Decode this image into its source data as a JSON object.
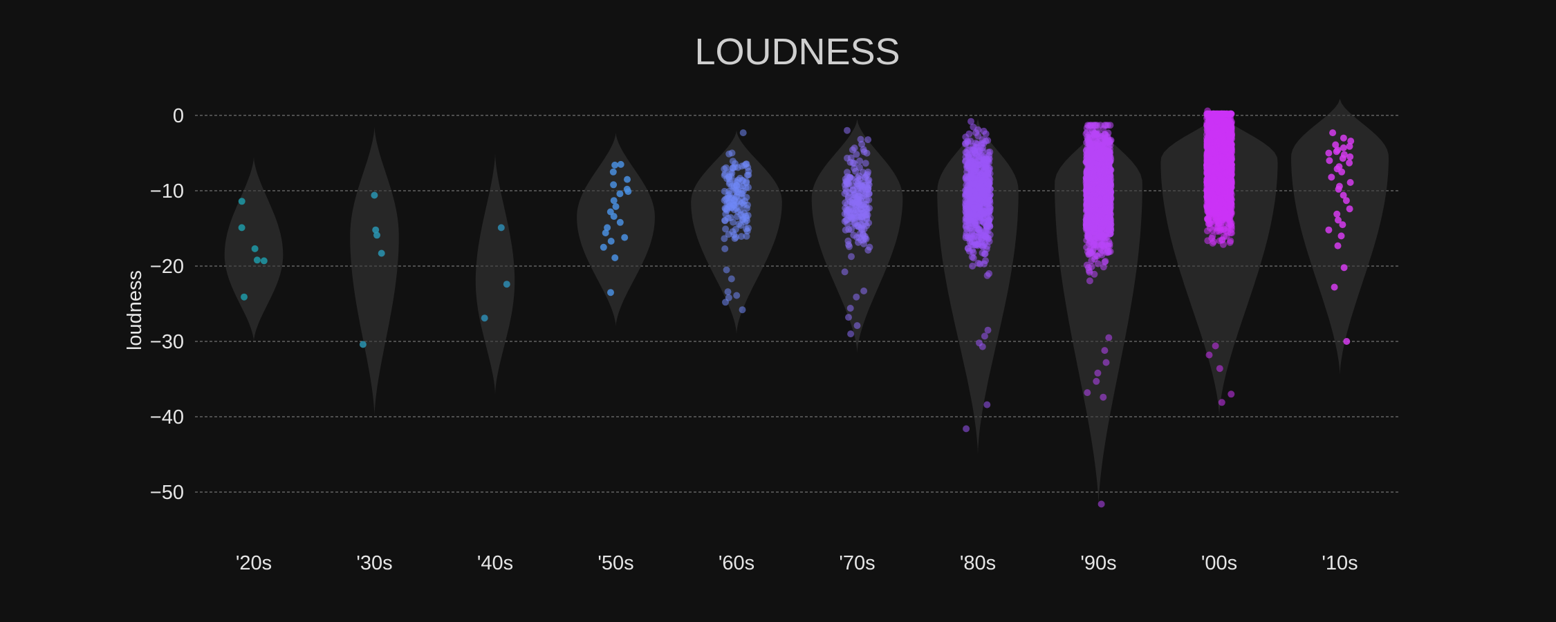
{
  "chart_data": {
    "type": "violin-strip",
    "title": "LOUDNESS",
    "xlabel": "",
    "ylabel": "loudness",
    "ylim": [
      -55,
      3
    ],
    "yticks": [
      0,
      -10,
      -20,
      -30,
      -40,
      -50
    ],
    "ytick_labels": [
      "0",
      "−10",
      "−20",
      "−30",
      "−40",
      "−50"
    ],
    "grid": true,
    "categories": [
      "'20s",
      "'30s",
      "'40s",
      "'50s",
      "'60s",
      "'70s",
      "'80s",
      "'90s",
      "'00s",
      "'10s"
    ],
    "colors": [
      "#1f9aa8",
      "#2a95b3",
      "#2e8cb3",
      "#4a8fe0",
      "#6f86f5",
      "#8a6ef5",
      "#9a55f8",
      "#b845f8",
      "#cc33f5",
      "#d63cf0"
    ],
    "violin_color": "#3a3a3a",
    "groups": [
      {
        "category": "'20s",
        "violin": {
          "min": -30,
          "max": -5.5,
          "median": -18.5,
          "width": 0.9
        },
        "points": [
          -11.4,
          -14.9,
          -17.7,
          -19.2,
          -19.3,
          -24.1
        ]
      },
      {
        "category": "'30s",
        "violin": {
          "min": -40,
          "max": -1.5,
          "median": -16,
          "width": 0.75
        },
        "points": [
          -10.6,
          -15.2,
          -15.9,
          -18.3,
          -30.4
        ]
      },
      {
        "category": "'40s",
        "violin": {
          "min": -37,
          "max": -5,
          "median": -22,
          "width": 0.6
        },
        "points": [
          -14.9,
          -22.4,
          -26.9
        ]
      },
      {
        "category": "'50s",
        "violin": {
          "min": -28,
          "max": -2.3,
          "median": -13.5,
          "width": 1.2
        },
        "points": [
          -6.5,
          -6.6,
          -7.5,
          -8.5,
          -9.2,
          -9.8,
          -10.1,
          -10.4,
          -11.3,
          -12.1,
          -12.8,
          -13.4,
          -14.2,
          -14.9,
          -15.6,
          -16.2,
          -16.7,
          -17.5,
          -18.9,
          -23.5
        ]
      },
      {
        "category": "'60s",
        "violin": {
          "min": -29,
          "max": -2,
          "median": -11.5,
          "width": 1.4
        },
        "points_generated": {
          "count": 130,
          "center": -11.5,
          "spread": 4.2,
          "outliers": [
            -20.5,
            -21.7,
            -23.4,
            -23.9,
            -24.2,
            -24.8,
            -25.8
          ]
        }
      },
      {
        "category": "'70s",
        "violin": {
          "min": -31.5,
          "max": -0.5,
          "median": -11,
          "width": 1.4
        },
        "points_generated": {
          "count": 200,
          "center": -11,
          "spread": 4.2,
          "outliers": [
            -23.3,
            -24.1,
            -25.6,
            -26.8,
            -27.9,
            -29.0
          ]
        }
      },
      {
        "category": "'80s",
        "violin": {
          "min": -45,
          "max": -0.5,
          "median": -10,
          "width": 1.25
        },
        "points_generated": {
          "count": 600,
          "center": -10.5,
          "spread": 4.6,
          "outliers": [
            -28.5,
            -29.3,
            -30.2,
            -30.7,
            -38.4,
            -41.6
          ]
        }
      },
      {
        "category": "'90s",
        "violin": {
          "min": -52,
          "max": -1,
          "median": -9,
          "width": 1.35
        },
        "points_generated": {
          "count": 1500,
          "center": -10,
          "spread": 4.6,
          "outliers": [
            -29.5,
            -31.2,
            -32.8,
            -34.2,
            -35.3,
            -36.8,
            -37.4,
            -51.6
          ]
        }
      },
      {
        "category": "'00s",
        "violin": {
          "min": -40,
          "max": 0.5,
          "median": -6,
          "width": 1.8
        },
        "points_generated": {
          "count": 2600,
          "center": -7,
          "spread": 4.3,
          "outliers": [
            -30.6,
            -31.8,
            -33.6,
            -37.0,
            -38.1,
            0.6
          ]
        }
      },
      {
        "category": "'10s",
        "violin": {
          "min": -34.5,
          "max": 2.2,
          "median": -5.5,
          "width": 1.5
        },
        "points": [
          -2.3,
          -3.0,
          -3.4,
          -3.9,
          -4.1,
          -4.3,
          -4.6,
          -4.8,
          -5.0,
          -5.2,
          -5.5,
          -5.7,
          -6.0,
          -6.3,
          -6.8,
          -7.1,
          -7.5,
          -8.2,
          -8.9,
          -9.4,
          -9.8,
          -10.6,
          -11.3,
          -12.4,
          -13.1,
          -13.9,
          -14.5,
          -15.2,
          -16.0,
          -17.3,
          -20.2,
          -22.8,
          -30.0
        ]
      }
    ]
  }
}
